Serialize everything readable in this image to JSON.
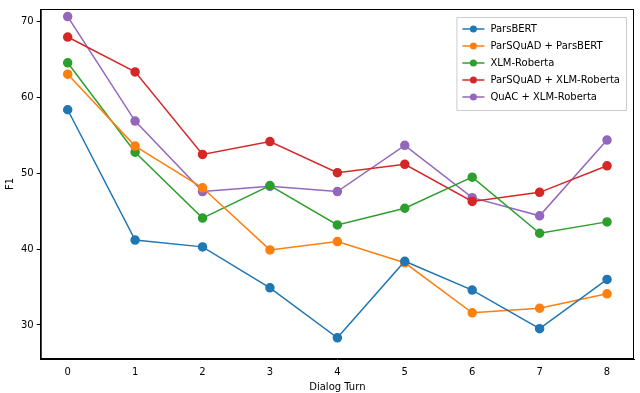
{
  "chart_data": {
    "type": "line",
    "x_label": "Dialog Turn",
    "y_label": "F1",
    "x": [
      0,
      1,
      2,
      3,
      4,
      5,
      6,
      7,
      8
    ],
    "series": [
      {
        "name": "ParsBERT",
        "color": "#1f77b4",
        "marker": "circle",
        "values": [
          58.4,
          41.2,
          40.3,
          34.9,
          28.3,
          38.4,
          34.6,
          29.5,
          36.0
        ]
      },
      {
        "name": "ParSQuAD + ParsBERT",
        "color": "#ff7f0e",
        "marker": "circle",
        "values": [
          63.1,
          53.6,
          48.1,
          39.9,
          41.0,
          38.2,
          31.6,
          32.2,
          34.1
        ]
      },
      {
        "name": "XLM-Roberta",
        "color": "#2ca02c",
        "marker": "circle",
        "values": [
          64.6,
          52.8,
          44.1,
          48.4,
          43.2,
          45.4,
          49.5,
          42.1,
          43.6
        ]
      },
      {
        "name": "ParSQuAD + XLM-Roberta",
        "color": "#d62728",
        "marker": "circle",
        "values": [
          68.0,
          63.4,
          52.5,
          54.2,
          50.1,
          51.2,
          46.3,
          47.5,
          51.0
        ]
      },
      {
        "name": "QuAC + XLM-Roberta",
        "color": "#9467bd",
        "marker": "circle",
        "values": [
          70.7,
          56.9,
          47.6,
          48.3,
          47.6,
          53.7,
          46.8,
          44.4,
          54.4
        ]
      }
    ],
    "xlim": [
      -0.4,
      8.4
    ],
    "xticks": [
      0,
      1,
      2,
      3,
      4,
      5,
      6,
      7,
      8
    ],
    "ylim": [
      25.5,
      71.7
    ],
    "yticks": [
      30,
      40,
      50,
      60,
      70
    ],
    "grid": false,
    "legend": "upper right"
  }
}
